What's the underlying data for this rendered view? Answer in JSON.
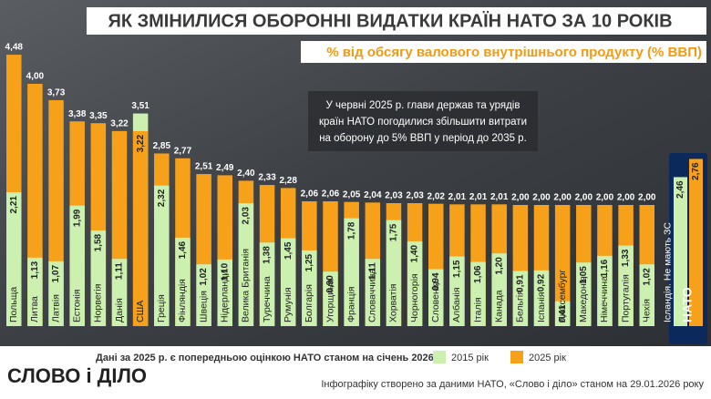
{
  "chart_data": {
    "type": "overlap-bar",
    "title": "ЯК ЗМІНИЛИСЯ ОБОРОННІ ВИДАТКИ КРАЇН НАТО ЗА 10 РОКІВ",
    "subtitle": "% від обсягу валового внутрішнього продукту (% ВВП)",
    "annotation": [
      "У червні 2025 р. глави держав та урядів",
      "країн НАТО погодилися збільшити витрати",
      "на оборону до 5% ВВП у період до 2035 р."
    ],
    "footnote": "Дані за 2025 р. є попередньою оцінкою НАТО станом на січень 2026 р.",
    "logo": "СЛОВО і ДІЛО",
    "source": "Інфографіку створено за даними НАТО, «Слово і діло» станом на 29.01.2026 року",
    "categories": [
      "Польща",
      "Литва",
      "Латвія",
      "Естонія",
      "Норвегія",
      "Данія",
      "США",
      "Греція",
      "Фінляндія",
      "Швеція",
      "Нідерланди",
      "Велика Британія",
      "Туреччина",
      "Румунія",
      "Болгарія",
      "Угорщина",
      "Франція",
      "Словаччина",
      "Хорватія",
      "Чорногорія",
      "Словенія",
      "Албанія",
      "Італія",
      "Канада",
      "Бельгія",
      "Іспанія",
      "Люксембург",
      "Македонія",
      "Німеччина",
      "Португалія",
      "Чехія",
      "Ісландія. Не мають ЗС",
      "НАТО"
    ],
    "series": [
      {
        "name": "2015 рік",
        "color": "#ccf0b0",
        "values": [
          2.21,
          1.13,
          1.07,
          1.99,
          1.58,
          1.11,
          3.51,
          2.32,
          1.46,
          1.02,
          1.1,
          2.03,
          1.38,
          1.45,
          1.25,
          0.9,
          1.78,
          1.11,
          1.75,
          1.4,
          0.94,
          1.15,
          1.06,
          1.2,
          0.91,
          0.92,
          0.41,
          1.05,
          1.16,
          1.33,
          1.02,
          null,
          2.46
        ],
        "value_labels": [
          "2,21",
          "1,13",
          "1,07",
          "1,99",
          "1,58",
          "1,11",
          "3,51",
          "2,32",
          "1,46",
          "1,02",
          "1,10",
          "2,03",
          "1,38",
          "1,45",
          "1,25",
          "0,90",
          "1,78",
          "1,11",
          "1,75",
          "1,40",
          "0,94",
          "1,15",
          "1,06",
          "1,20",
          "0,91",
          "0,92",
          "0,41",
          "1,05",
          "1,16",
          "1,33",
          "1,02",
          null,
          "2,46"
        ]
      },
      {
        "name": "2025 рік",
        "color": "#f7a11a",
        "values": [
          4.48,
          4.0,
          3.73,
          3.38,
          3.35,
          3.22,
          3.22,
          2.85,
          2.77,
          2.51,
          2.49,
          2.4,
          2.33,
          2.28,
          2.06,
          2.06,
          2.05,
          2.04,
          2.03,
          2.03,
          2.02,
          2.01,
          2.01,
          2.01,
          2.0,
          2.0,
          2.0,
          2.0,
          2.0,
          2.0,
          2.0,
          null,
          2.76
        ],
        "value_labels": [
          "4,48",
          "4,00",
          "3,73",
          "3,38",
          "3,35",
          "3,22",
          "3,22",
          "2,85",
          "2,77",
          "2,51",
          "2,49",
          "2,40",
          "2,33",
          "2,28",
          "2,06",
          "2,06",
          "2,05",
          "2,04",
          "2,03",
          "2,03",
          "2,02",
          "2,01",
          "2,01",
          "2,01",
          "2,00",
          "2,00",
          "2,00",
          "2,00",
          "2,00",
          "2,00",
          "2,00",
          null,
          "2,76"
        ]
      }
    ]
  }
}
